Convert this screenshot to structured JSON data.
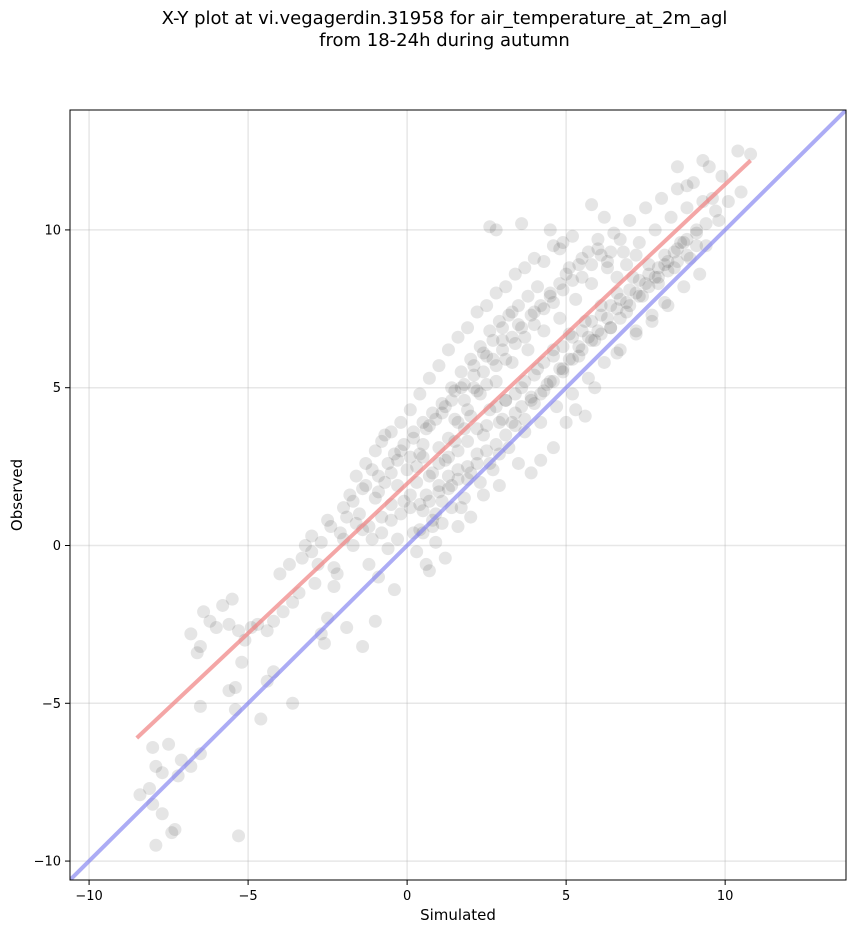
{
  "chart_data": {
    "type": "scatter",
    "title": "X-Y plot at vi.vegagerdin.31958 for air_temperature_at_2m_agl",
    "subtitle": "from 18-24h during autumn",
    "xlabel": "Simulated",
    "ylabel": "Observed",
    "xlim": [
      -10.6,
      13.8
    ],
    "ylim": [
      -10.6,
      13.8
    ],
    "x_ticks": [
      -10,
      -5,
      0,
      5,
      10
    ],
    "y_ticks": [
      -10,
      -5,
      0,
      5,
      10
    ],
    "grid": true,
    "point_color": "#000000",
    "point_alpha": 0.1,
    "fit_line": {
      "color": "#f08080",
      "x": [
        -8.5,
        10.8
      ],
      "y": [
        -6.1,
        12.2
      ]
    },
    "identity_line": {
      "color": "#8080f0",
      "x": [
        -10.6,
        13.8
      ],
      "y": [
        -10.6,
        13.8
      ]
    },
    "points": [
      [
        -8.4,
        -7.9
      ],
      [
        -8.1,
        -7.7
      ],
      [
        -8.0,
        -6.4
      ],
      [
        -7.9,
        -7.0
      ],
      [
        -7.7,
        -7.2
      ],
      [
        -7.5,
        -6.3
      ],
      [
        -7.4,
        -9.1
      ],
      [
        -7.3,
        -9.0
      ],
      [
        -7.2,
        -7.3
      ],
      [
        -7.9,
        -9.5
      ],
      [
        -8.0,
        -8.2
      ],
      [
        -7.7,
        -8.5
      ],
      [
        -7.1,
        -6.8
      ],
      [
        -6.8,
        -7.0
      ],
      [
        -6.8,
        -2.8
      ],
      [
        -6.5,
        -3.2
      ],
      [
        -6.4,
        -2.1
      ],
      [
        -6.2,
        -2.4
      ],
      [
        -6.0,
        -2.6
      ],
      [
        -5.8,
        -1.9
      ],
      [
        -5.6,
        -2.5
      ],
      [
        -5.5,
        -1.7
      ],
      [
        -5.3,
        -2.7
      ],
      [
        -5.1,
        -3.0
      ],
      [
        -4.9,
        -2.6
      ],
      [
        -4.7,
        -2.5
      ],
      [
        -4.4,
        -2.7
      ],
      [
        -4.2,
        -2.4
      ],
      [
        -3.9,
        -2.1
      ],
      [
        -3.6,
        -1.8
      ],
      [
        -6.6,
        -3.4
      ],
      [
        -6.5,
        -5.1
      ],
      [
        -5.6,
        -4.6
      ],
      [
        -5.4,
        -4.5
      ],
      [
        -5.2,
        -3.7
      ],
      [
        -4.6,
        -5.5
      ],
      [
        -4.4,
        -4.3
      ],
      [
        -3.6,
        -5.0
      ],
      [
        -6.5,
        -6.6
      ],
      [
        -5.4,
        -5.2
      ],
      [
        -5.3,
        -9.2
      ],
      [
        -4.2,
        -4.0
      ],
      [
        -4.0,
        -0.9
      ],
      [
        -3.7,
        -0.6
      ],
      [
        -3.3,
        -0.4
      ],
      [
        -3.0,
        0.3
      ],
      [
        -2.8,
        -0.6
      ],
      [
        -2.5,
        0.8
      ],
      [
        -2.3,
        -0.7
      ],
      [
        -2.1,
        0.4
      ],
      [
        -1.9,
        0.9
      ],
      [
        -1.7,
        1.4
      ],
      [
        -1.5,
        1.0
      ],
      [
        -1.4,
        1.8
      ],
      [
        -1.2,
        0.6
      ],
      [
        -1.0,
        1.5
      ],
      [
        -0.9,
        2.2
      ],
      [
        -0.8,
        0.9
      ],
      [
        -0.6,
        2.6
      ],
      [
        -0.5,
        1.3
      ],
      [
        -0.3,
        1.9
      ],
      [
        -0.2,
        3.0
      ],
      [
        -2.7,
        -2.8
      ],
      [
        -2.6,
        -3.1
      ],
      [
        -2.5,
        -2.3
      ],
      [
        -2.3,
        -1.3
      ],
      [
        -1.9,
        -2.6
      ],
      [
        -1.4,
        -3.2
      ],
      [
        -1.2,
        -0.6
      ],
      [
        -1.0,
        -2.4
      ],
      [
        -0.9,
        -1.0
      ],
      [
        -0.6,
        -0.1
      ],
      [
        -0.4,
        -1.4
      ],
      [
        -0.3,
        0.2
      ],
      [
        0.0,
        2.4
      ],
      [
        0.1,
        1.2
      ],
      [
        0.2,
        3.4
      ],
      [
        0.3,
        2.0
      ],
      [
        0.4,
        0.5
      ],
      [
        0.5,
        2.8
      ],
      [
        0.6,
        1.6
      ],
      [
        0.7,
        3.8
      ],
      [
        0.8,
        2.3
      ],
      [
        0.9,
        1.0
      ],
      [
        1.0,
        3.1
      ],
      [
        1.1,
        4.2
      ],
      [
        1.2,
        2.7
      ],
      [
        1.3,
        1.8
      ],
      [
        1.4,
        4.6
      ],
      [
        1.5,
        3.3
      ],
      [
        1.6,
        2.1
      ],
      [
        1.7,
        5.0
      ],
      [
        1.8,
        3.7
      ],
      [
        1.9,
        2.5
      ],
      [
        0.3,
        -0.2
      ],
      [
        0.5,
        0.4
      ],
      [
        0.7,
        -0.8
      ],
      [
        0.9,
        0.1
      ],
      [
        1.1,
        0.7
      ],
      [
        1.2,
        -0.4
      ],
      [
        1.4,
        1.2
      ],
      [
        1.6,
        0.6
      ],
      [
        1.8,
        1.5
      ],
      [
        2.0,
        0.9
      ],
      [
        0.6,
        -0.6
      ],
      [
        0.8,
        0.6
      ],
      [
        2.0,
        4.1
      ],
      [
        2.1,
        5.4
      ],
      [
        2.2,
        2.9
      ],
      [
        2.3,
        4.8
      ],
      [
        2.4,
        3.5
      ],
      [
        2.5,
        6.0
      ],
      [
        2.6,
        4.3
      ],
      [
        2.7,
        2.4
      ],
      [
        2.8,
        5.2
      ],
      [
        2.9,
        3.9
      ],
      [
        3.0,
        6.5
      ],
      [
        3.1,
        4.6
      ],
      [
        3.2,
        3.1
      ],
      [
        3.3,
        5.8
      ],
      [
        3.4,
        4.2
      ],
      [
        3.5,
        7.0
      ],
      [
        3.6,
        5.0
      ],
      [
        3.7,
        3.6
      ],
      [
        3.8,
        6.2
      ],
      [
        3.9,
        4.7
      ],
      [
        2.6,
        10.1
      ],
      [
        2.8,
        10.0
      ],
      [
        3.6,
        10.2
      ],
      [
        4.5,
        10.0
      ],
      [
        2.9,
        1.9
      ],
      [
        3.5,
        2.6
      ],
      [
        3.9,
        2.3
      ],
      [
        2.4,
        1.6
      ],
      [
        4.6,
        3.1
      ],
      [
        4.2,
        2.7
      ],
      [
        4.0,
        7.4
      ],
      [
        4.1,
        5.6
      ],
      [
        4.2,
        3.9
      ],
      [
        4.3,
        6.8
      ],
      [
        4.4,
        5.1
      ],
      [
        4.5,
        8.0
      ],
      [
        4.6,
        6.2
      ],
      [
        4.7,
        4.4
      ],
      [
        4.8,
        7.2
      ],
      [
        4.9,
        5.6
      ],
      [
        5.0,
        8.6
      ],
      [
        5.1,
        6.7
      ],
      [
        5.2,
        4.8
      ],
      [
        5.3,
        7.8
      ],
      [
        5.4,
        6.0
      ],
      [
        5.5,
        9.1
      ],
      [
        5.6,
        7.1
      ],
      [
        5.7,
        5.3
      ],
      [
        5.8,
        8.3
      ],
      [
        5.9,
        6.5
      ],
      [
        5.0,
        3.9
      ],
      [
        5.3,
        4.3
      ],
      [
        5.6,
        4.1
      ],
      [
        5.9,
        5.0
      ],
      [
        4.8,
        9.4
      ],
      [
        5.2,
        9.8
      ],
      [
        5.8,
        10.8
      ],
      [
        6.2,
        10.4
      ],
      [
        6.0,
        9.4
      ],
      [
        6.1,
        7.6
      ],
      [
        6.2,
        5.8
      ],
      [
        6.3,
        8.8
      ],
      [
        6.4,
        6.9
      ],
      [
        6.5,
        9.9
      ],
      [
        6.6,
        8.0
      ],
      [
        6.7,
        6.2
      ],
      [
        6.8,
        9.3
      ],
      [
        6.9,
        7.4
      ],
      [
        7.0,
        10.3
      ],
      [
        7.1,
        8.5
      ],
      [
        7.2,
        6.7
      ],
      [
        7.3,
        9.6
      ],
      [
        7.4,
        7.9
      ],
      [
        7.5,
        10.7
      ],
      [
        7.6,
        8.9
      ],
      [
        7.7,
        7.1
      ],
      [
        7.8,
        10.0
      ],
      [
        7.9,
        8.3
      ],
      [
        6.6,
        6.1
      ],
      [
        7.2,
        6.8
      ],
      [
        7.7,
        7.3
      ],
      [
        8.1,
        7.7
      ],
      [
        8.5,
        12.0
      ],
      [
        8.8,
        11.4
      ],
      [
        9.3,
        12.2
      ],
      [
        9.5,
        12.0
      ],
      [
        10.4,
        12.5
      ],
      [
        10.8,
        12.4
      ],
      [
        10.5,
        11.2
      ],
      [
        10.1,
        10.9
      ],
      [
        8.0,
        11.0
      ],
      [
        8.1,
        9.2
      ],
      [
        8.2,
        7.6
      ],
      [
        8.3,
        10.4
      ],
      [
        8.4,
        8.8
      ],
      [
        8.5,
        11.3
      ],
      [
        8.6,
        9.6
      ],
      [
        8.7,
        8.2
      ],
      [
        8.8,
        10.7
      ],
      [
        8.9,
        9.1
      ],
      [
        9.0,
        11.5
      ],
      [
        9.1,
        10.0
      ],
      [
        9.2,
        8.6
      ],
      [
        9.3,
        10.9
      ],
      [
        9.4,
        9.5
      ],
      [
        9.6,
        11.0
      ],
      [
        9.8,
        10.3
      ],
      [
        9.9,
        11.7
      ],
      [
        1.0,
        2.6
      ],
      [
        1.3,
        3.4
      ],
      [
        1.6,
        3.9
      ],
      [
        1.9,
        4.3
      ],
      [
        2.2,
        4.9
      ],
      [
        2.5,
        5.1
      ],
      [
        2.8,
        5.7
      ],
      [
        3.1,
        5.9
      ],
      [
        3.4,
        6.4
      ],
      [
        3.7,
        6.6
      ],
      [
        4.0,
        7.0
      ],
      [
        4.3,
        7.5
      ],
      [
        4.6,
        7.7
      ],
      [
        4.9,
        8.1
      ],
      [
        5.2,
        8.4
      ],
      [
        5.5,
        8.5
      ],
      [
        5.8,
        8.9
      ],
      [
        6.1,
        9.2
      ],
      [
        6.4,
        9.3
      ],
      [
        6.7,
        9.7
      ],
      [
        0.4,
        2.9
      ],
      [
        0.7,
        2.2
      ],
      [
        1.0,
        1.9
      ],
      [
        1.3,
        2.8
      ],
      [
        1.6,
        3.0
      ],
      [
        1.9,
        3.3
      ],
      [
        2.2,
        3.7
      ],
      [
        2.5,
        3.8
      ],
      [
        2.8,
        4.4
      ],
      [
        3.1,
        4.6
      ],
      [
        3.4,
        4.8
      ],
      [
        3.7,
        5.2
      ],
      [
        4.0,
        5.4
      ],
      [
        4.3,
        5.8
      ],
      [
        4.6,
        6.0
      ],
      [
        4.9,
        6.3
      ],
      [
        5.2,
        6.6
      ],
      [
        5.5,
        6.8
      ],
      [
        5.8,
        7.1
      ],
      [
        6.1,
        7.3
      ],
      [
        6.4,
        7.6
      ],
      [
        6.7,
        7.8
      ],
      [
        7.0,
        8.1
      ],
      [
        7.3,
        8.4
      ],
      [
        7.6,
        8.6
      ],
      [
        7.9,
        8.8
      ],
      [
        8.2,
        9.0
      ],
      [
        8.5,
        9.4
      ],
      [
        8.8,
        9.7
      ],
      [
        9.1,
        9.9
      ],
      [
        -0.8,
        3.3
      ],
      [
        -0.5,
        3.6
      ],
      [
        -0.2,
        3.9
      ],
      [
        0.1,
        4.3
      ],
      [
        0.4,
        4.8
      ],
      [
        0.7,
        5.3
      ],
      [
        1.0,
        5.7
      ],
      [
        1.3,
        6.2
      ],
      [
        1.6,
        6.6
      ],
      [
        1.9,
        6.9
      ],
      [
        2.2,
        7.4
      ],
      [
        2.5,
        7.6
      ],
      [
        2.8,
        8.0
      ],
      [
        3.1,
        8.2
      ],
      [
        3.4,
        8.6
      ],
      [
        3.7,
        8.8
      ],
      [
        4.0,
        9.1
      ],
      [
        4.3,
        9.0
      ],
      [
        4.6,
        9.5
      ],
      [
        4.9,
        9.6
      ],
      [
        -1.6,
        2.2
      ],
      [
        -1.3,
        2.6
      ],
      [
        -1.0,
        3.0
      ],
      [
        -0.7,
        3.5
      ],
      [
        -0.4,
        2.9
      ],
      [
        -0.1,
        3.2
      ],
      [
        0.2,
        3.6
      ],
      [
        0.5,
        3.9
      ],
      [
        0.8,
        4.2
      ],
      [
        1.1,
        4.5
      ],
      [
        1.4,
        5.0
      ],
      [
        1.7,
        5.5
      ],
      [
        2.0,
        5.9
      ],
      [
        2.3,
        6.3
      ],
      [
        2.6,
        6.8
      ],
      [
        2.9,
        7.1
      ],
      [
        3.2,
        7.3
      ],
      [
        3.5,
        7.6
      ],
      [
        3.8,
        7.9
      ],
      [
        4.1,
        8.2
      ],
      [
        -2.0,
        0.2
      ],
      [
        -1.7,
        0.0
      ],
      [
        -1.4,
        0.5
      ],
      [
        -1.1,
        0.2
      ],
      [
        -0.8,
        0.4
      ],
      [
        -0.5,
        0.8
      ],
      [
        -0.2,
        1.0
      ],
      [
        0.1,
        1.6
      ],
      [
        0.4,
        1.3
      ],
      [
        0.7,
        1.4
      ],
      [
        1.0,
        1.7
      ],
      [
        1.3,
        2.2
      ],
      [
        1.6,
        2.4
      ],
      [
        1.9,
        2.1
      ],
      [
        2.2,
        2.6
      ],
      [
        2.5,
        3.0
      ],
      [
        2.8,
        3.2
      ],
      [
        3.1,
        3.5
      ],
      [
        3.4,
        3.8
      ],
      [
        3.7,
        4.0
      ],
      [
        4.0,
        4.5
      ],
      [
        4.3,
        4.9
      ],
      [
        4.6,
        5.2
      ],
      [
        4.9,
        5.5
      ],
      [
        5.2,
        5.9
      ],
      [
        5.5,
        6.2
      ],
      [
        5.8,
        6.5
      ],
      [
        6.1,
        6.7
      ],
      [
        6.4,
        6.9
      ],
      [
        6.7,
        7.2
      ],
      [
        7.0,
        7.6
      ],
      [
        7.3,
        7.9
      ],
      [
        7.6,
        8.2
      ],
      [
        7.9,
        8.5
      ],
      [
        8.2,
        8.7
      ],
      [
        8.5,
        9.0
      ],
      [
        8.8,
        9.2
      ],
      [
        9.1,
        9.5
      ],
      [
        9.4,
        10.2
      ],
      [
        9.7,
        10.6
      ],
      [
        -3.0,
        -0.2
      ],
      [
        -2.7,
        0.1
      ],
      [
        -2.4,
        0.6
      ],
      [
        -2.2,
        -0.9
      ],
      [
        -3.4,
        -1.5
      ],
      [
        -2.9,
        -1.2
      ],
      [
        -3.2,
        0.0
      ],
      [
        -2.0,
        1.2
      ],
      [
        -1.8,
        1.6
      ],
      [
        -1.6,
        0.7
      ],
      [
        -1.3,
        1.9
      ],
      [
        -1.1,
        2.4
      ],
      [
        -0.9,
        1.7
      ],
      [
        -0.7,
        2.0
      ],
      [
        -0.5,
        2.3
      ],
      [
        -0.3,
        2.7
      ],
      [
        -0.1,
        1.4
      ],
      [
        0.1,
        2.8
      ],
      [
        0.3,
        2.5
      ],
      [
        0.5,
        3.2
      ],
      [
        1.5,
        4.0
      ],
      [
        1.8,
        4.6
      ],
      [
        2.1,
        5.0
      ],
      [
        2.4,
        5.5
      ],
      [
        2.7,
        5.9
      ],
      [
        3.0,
        6.2
      ],
      [
        3.3,
        6.6
      ],
      [
        3.6,
        6.9
      ],
      [
        3.9,
        7.3
      ],
      [
        4.2,
        7.6
      ],
      [
        4.5,
        7.9
      ],
      [
        4.8,
        8.3
      ],
      [
        5.1,
        8.8
      ],
      [
        5.4,
        8.9
      ],
      [
        5.7,
        9.3
      ],
      [
        6.0,
        9.7
      ],
      [
        6.3,
        9.0
      ],
      [
        6.6,
        8.5
      ],
      [
        6.9,
        8.9
      ],
      [
        7.2,
        9.2
      ],
      [
        3.0,
        4.0
      ],
      [
        3.3,
        3.9
      ],
      [
        3.6,
        4.4
      ],
      [
        3.9,
        4.6
      ],
      [
        4.2,
        4.8
      ],
      [
        4.5,
        5.2
      ],
      [
        4.8,
        5.6
      ],
      [
        5.1,
        5.9
      ],
      [
        5.4,
        6.3
      ],
      [
        5.7,
        6.6
      ],
      [
        6.0,
        6.8
      ],
      [
        6.3,
        7.2
      ],
      [
        6.6,
        7.5
      ],
      [
        6.9,
        7.7
      ],
      [
        7.2,
        8.0
      ],
      [
        7.5,
        8.3
      ],
      [
        7.8,
        8.5
      ],
      [
        8.1,
        8.9
      ],
      [
        8.4,
        9.3
      ],
      [
        8.7,
        9.6
      ],
      [
        0.2,
        0.4
      ],
      [
        0.5,
        1.1
      ],
      [
        0.8,
        0.8
      ],
      [
        1.1,
        1.4
      ],
      [
        1.4,
        1.9
      ],
      [
        1.7,
        1.2
      ],
      [
        2.0,
        2.3
      ],
      [
        2.3,
        2.0
      ],
      [
        2.6,
        2.6
      ],
      [
        2.9,
        2.9
      ],
      [
        0.6,
        3.7
      ],
      [
        0.9,
        4.0
      ],
      [
        1.2,
        4.4
      ],
      [
        1.5,
        4.9
      ],
      [
        1.8,
        5.1
      ],
      [
        2.1,
        5.7
      ],
      [
        2.4,
        6.1
      ],
      [
        2.7,
        6.5
      ],
      [
        3.0,
        6.9
      ],
      [
        3.3,
        7.4
      ]
    ]
  }
}
